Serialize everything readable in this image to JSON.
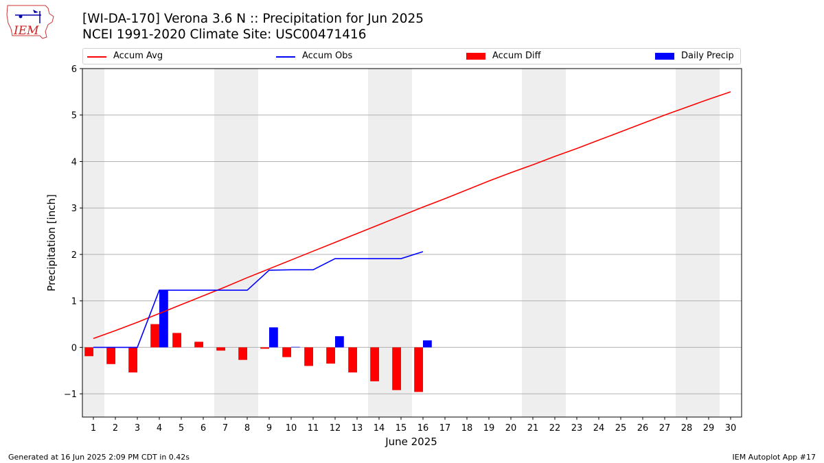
{
  "header": {
    "title_line1": "[WI-DA-170] Verona 3.6 N :: Precipitation for Jun 2025",
    "title_line2": "NCEI 1991-2020 Climate Site: USC00471416",
    "logo_text": "IEM"
  },
  "footer": {
    "left": "Generated at 16 Jun 2025 2:09 PM CDT in 0.42s",
    "right": "IEM Autoplot App #17"
  },
  "colors": {
    "accum_avg": "#ff0000",
    "accum_obs": "#0000ff",
    "accum_diff": "#ff0000",
    "daily_precip": "#0000ff",
    "weekend_shade": "#eeeeee",
    "grid": "#b0b0b0"
  },
  "chart_data": {
    "type": "bar",
    "xlabel": "June 2025",
    "ylabel": "Precipitation [inch]",
    "xlim": [
      0.5,
      30.5
    ],
    "ylim": [
      -1.5,
      6
    ],
    "yticks": [
      -1,
      0,
      1,
      2,
      3,
      4,
      5,
      6
    ],
    "ytick_labels": [
      "−1",
      "0",
      "1",
      "2",
      "3",
      "4",
      "5",
      "6"
    ],
    "grid": "horizontal",
    "legend_position": "top",
    "days": [
      1,
      2,
      3,
      4,
      5,
      6,
      7,
      8,
      9,
      10,
      11,
      12,
      13,
      14,
      15,
      16,
      17,
      18,
      19,
      20,
      21,
      22,
      23,
      24,
      25,
      26,
      27,
      28,
      29,
      30
    ],
    "weekend_days": [
      1,
      7,
      8,
      14,
      15,
      21,
      22,
      28,
      29
    ],
    "series": [
      {
        "name": "Accum Avg",
        "kind": "line",
        "color": "#ff0000",
        "values": [
          0.19,
          0.36,
          0.54,
          0.73,
          0.92,
          1.11,
          1.3,
          1.5,
          1.69,
          1.88,
          2.07,
          2.26,
          2.45,
          2.64,
          2.83,
          3.02,
          3.2,
          3.39,
          3.58,
          3.76,
          3.93,
          4.11,
          4.28,
          4.46,
          4.64,
          4.82,
          5.0,
          5.17,
          5.34,
          5.5
        ]
      },
      {
        "name": "Accum Obs",
        "kind": "line",
        "color": "#0000ff",
        "values": [
          0.0,
          0.0,
          0.0,
          1.23,
          1.23,
          1.23,
          1.23,
          1.23,
          1.66,
          1.67,
          1.67,
          1.91,
          1.91,
          1.91,
          1.91,
          2.06
        ]
      },
      {
        "name": "Accum Diff",
        "kind": "bar",
        "color": "#ff0000",
        "values": [
          -0.19,
          -0.36,
          -0.54,
          0.5,
          0.31,
          0.12,
          -0.07,
          -0.27,
          -0.03,
          -0.21,
          -0.4,
          -0.35,
          -0.54,
          -0.73,
          -0.92,
          -0.96
        ]
      },
      {
        "name": "Daily Precip",
        "kind": "bar",
        "color": "#0000ff",
        "values": [
          0.0,
          0.0,
          0.0,
          1.23,
          0.0,
          0.0,
          0.0,
          0.0,
          0.43,
          0.01,
          0.0,
          0.24,
          0.0,
          0.0,
          0.0,
          0.15
        ]
      }
    ]
  }
}
